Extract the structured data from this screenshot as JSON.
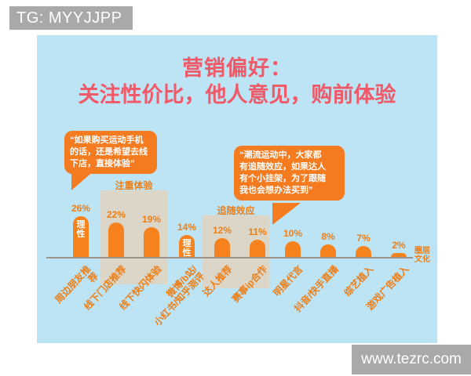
{
  "badges": {
    "tg_badge": "TG: MYYJJPP",
    "site_watermark": "www.tezrc.com"
  },
  "title": {
    "line1": "营销偏好：",
    "line2": "关注性价比，他人意见，购前体验"
  },
  "bubbles": [
    {
      "lines": [
        "“如果购买运动手机",
        "的话，还是希望去线",
        "下店，直接体验”"
      ]
    },
    {
      "lines": [
        "“潮流运动中，大家都",
        "有追随效应，如果达人",
        "有个小挂架，为了跟随",
        "我也会想办法买到”"
      ]
    }
  ],
  "axis_end_label": "圈层\n文化",
  "chart_data": {
    "type": "bar",
    "title": "营销偏好：关注性价比，他人意见，购前体验",
    "categories": [
      "周边朋友推荐",
      "线下门店推荐",
      "线下快闪体验",
      "微博/b站/\n小红书/知乎测评",
      "达人推荐",
      "赛事ip合作",
      "明星代言",
      "抖音/快手直播",
      "综艺植入",
      "游戏广告植入"
    ],
    "values": [
      26,
      22,
      19,
      14,
      12,
      11,
      10,
      8,
      7,
      2
    ],
    "unit": "%",
    "value_labels": [
      "26%",
      "22%",
      "19%",
      "14%",
      "12%",
      "11%",
      "10%",
      "8%",
      "7%",
      "2%"
    ],
    "bar_annotations": [
      {
        "index": 0,
        "label": "理性"
      },
      {
        "index": 3,
        "label": "理性"
      }
    ],
    "highlight_groups": [
      {
        "label": "注重体验",
        "bar_indexes": [
          1,
          2
        ]
      },
      {
        "label": "追随效应",
        "bar_indexes": [
          4,
          5
        ]
      }
    ],
    "xlabel": "",
    "ylabel": "",
    "ylim": [
      0,
      30
    ],
    "grid": false,
    "legend": false
  },
  "colors": {
    "panel_blue": "#bde4f5",
    "bar_orange": "#f5821c",
    "bubble_orange": "#f47b1f",
    "title_pink": "#ef5968",
    "label_orange": "#ee7e16",
    "group_beige": "#dcd6c8",
    "axis_gray": "#9e938a",
    "watermark_gray": "#a9a9a9",
    "annotation_white": "#ffffff"
  }
}
